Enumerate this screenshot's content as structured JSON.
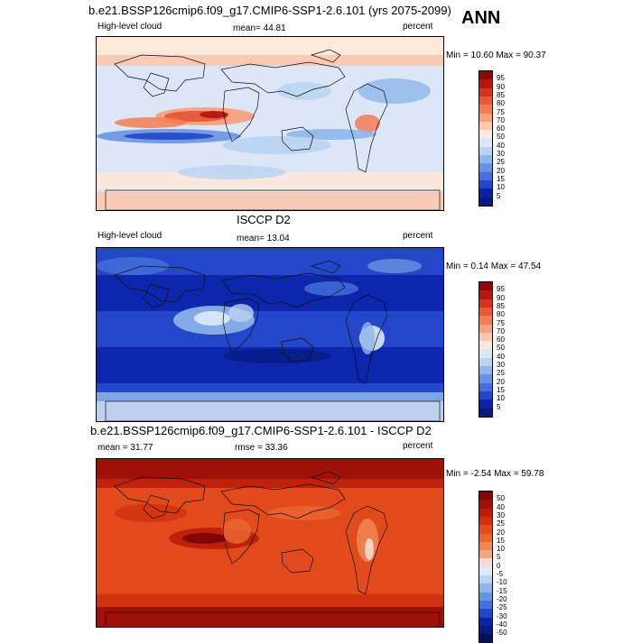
{
  "season": "ANN",
  "panels": [
    {
      "title": "b.e21.BSSP126cmip6.f09_g17.CMIP6-SSP1-2.6.101 (yrs 2075-2099)",
      "left_label": "High-level cloud",
      "mid_label": "mean=  44.81",
      "right_label": "percent",
      "minmax": "Min =  10.60 Max =  90.37",
      "theme": "model",
      "colorbar": {
        "labels": [
          "95",
          "90",
          "85",
          "80",
          "75",
          "70",
          "60",
          "50",
          "40",
          "30",
          "25",
          "20",
          "15",
          "10",
          "5"
        ],
        "colors": [
          "#8c0a0a",
          "#b5180e",
          "#d23519",
          "#e55a36",
          "#f27c55",
          "#f9a07f",
          "#fcc7ad",
          "#fde8da",
          "#dbe7f7",
          "#b9d3f1",
          "#8fb6ea",
          "#6993e2",
          "#4670db",
          "#2347c8",
          "#0a22a8",
          "#051a7c"
        ]
      }
    },
    {
      "title": "ISCCP D2",
      "left_label": "High-level cloud",
      "mid_label": "mean=  13.04",
      "right_label": "percent",
      "minmax": "Min =   0.14 Max =  47.54",
      "theme": "obs",
      "colorbar": {
        "labels": [
          "95",
          "90",
          "85",
          "80",
          "75",
          "70",
          "60",
          "50",
          "40",
          "30",
          "25",
          "20",
          "15",
          "10",
          "5"
        ],
        "colors": [
          "#8c0a0a",
          "#b5180e",
          "#d23519",
          "#e55a36",
          "#f27c55",
          "#f9a07f",
          "#fcc7ad",
          "#fde8da",
          "#dbe7f7",
          "#b9d3f1",
          "#8fb6ea",
          "#6993e2",
          "#4670db",
          "#2347c8",
          "#0a22a8",
          "#051a7c"
        ]
      }
    },
    {
      "title": "b.e21.BSSP126cmip6.f09_g17.CMIP6-SSP1-2.6.101 - ISCCP D2",
      "left_label": "mean =  31.77",
      "mid_label": "rmse =  33.36",
      "right_label": "percent",
      "minmax": "Min =  -2.54 Max =  59.78",
      "theme": "diff",
      "colorbar": {
        "labels": [
          "50",
          "40",
          "30",
          "25",
          "20",
          "15",
          "10",
          "5",
          "0",
          "-5",
          "-10",
          "-15",
          "-20",
          "-25",
          "-30",
          "-40",
          "-50"
        ],
        "colors": [
          "#7d0707",
          "#9e1008",
          "#bc1d0b",
          "#d2300f",
          "#e14a1c",
          "#ea6631",
          "#f08454",
          "#f5a583",
          "#fadad0",
          "#dfe9f8",
          "#b9d3f1",
          "#8fb6ea",
          "#6993e2",
          "#4670db",
          "#2347c8",
          "#0a22a8",
          "#061e7a",
          "#03105a"
        ]
      }
    }
  ]
}
